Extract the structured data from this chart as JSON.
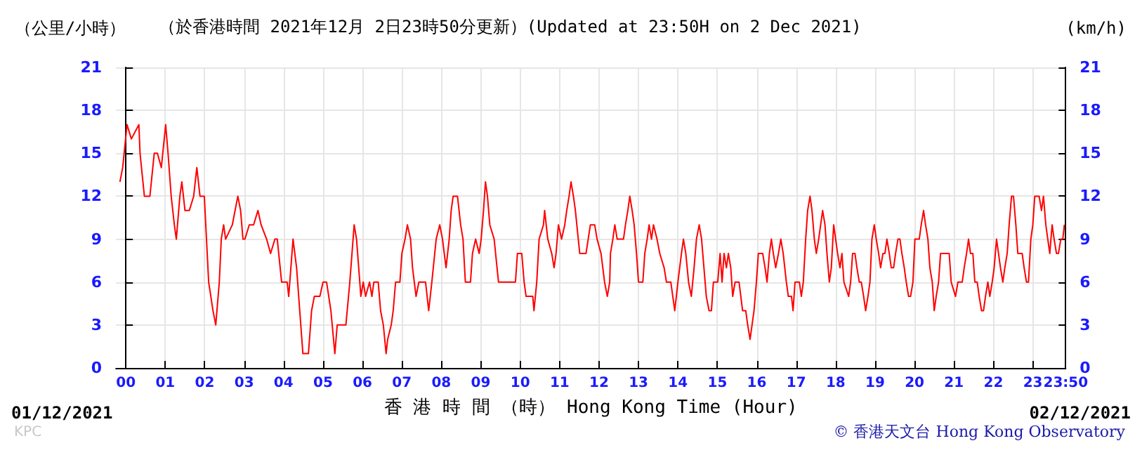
{
  "chart_data": {
    "type": "line",
    "title": "（於香港時間 2021年12月 2日23時50分更新）(Updated at 23:50H on 2 Dec 2021)",
    "ylabel": "（公里/小時）",
    "y2label": "(km/h)",
    "xlabel": "香 港 時 間 （時） Hong Kong Time (Hour)",
    "annotations": [
      "01/12/2021",
      "02/12/2021",
      "© 香港天文台 Hong Kong Observatory",
      "KPC"
    ],
    "xlim": [
      -0.25,
      23.833
    ],
    "xticks": [
      {
        "value": 0,
        "label": "00"
      },
      {
        "value": 1,
        "label": "01"
      },
      {
        "value": 2,
        "label": "02"
      },
      {
        "value": 3,
        "label": "03"
      },
      {
        "value": 4,
        "label": "04"
      },
      {
        "value": 5,
        "label": "05"
      },
      {
        "value": 6,
        "label": "06"
      },
      {
        "value": 7,
        "label": "07"
      },
      {
        "value": 8,
        "label": "08"
      },
      {
        "value": 9,
        "label": "09"
      },
      10,
      11,
      12,
      13,
      14,
      15,
      16,
      17,
      18,
      19,
      20,
      21,
      22,
      23,
      {
        "value": 23.833,
        "label": "23:50"
      }
    ],
    "ylim": [
      0,
      21
    ],
    "yticks": [
      0,
      3,
      6,
      9,
      12,
      15,
      18,
      21
    ],
    "y2lim": [
      0,
      21
    ],
    "y2ticks": [
      0,
      3,
      6,
      9,
      12,
      15,
      18,
      21
    ],
    "grid": true,
    "marker": "none",
    "line_style": "solid",
    "x": [
      -0.15,
      -0.08,
      0.03,
      0.14,
      0.33,
      0.36,
      0.47,
      0.61,
      0.72,
      0.8,
      0.9,
      1.01,
      1.07,
      1.15,
      1.23,
      1.28,
      1.37,
      1.42,
      1.5,
      1.61,
      1.72,
      1.8,
      1.88,
      1.99,
      2.1,
      2.21,
      2.28,
      2.37,
      2.42,
      2.48,
      2.53,
      2.7,
      2.84,
      2.91,
      2.97,
      3.02,
      3.13,
      3.24,
      3.35,
      3.43,
      3.57,
      3.67,
      3.78,
      3.84,
      3.95,
      4.09,
      4.13,
      4.24,
      4.33,
      4.41,
      4.49,
      4.63,
      4.71,
      4.78,
      4.92,
      5.0,
      5.09,
      5.2,
      5.3,
      5.36,
      5.58,
      5.68,
      5.79,
      5.85,
      5.96,
      6.02,
      6.08,
      6.18,
      6.24,
      6.29,
      6.4,
      6.46,
      6.53,
      6.6,
      6.64,
      6.73,
      6.78,
      6.84,
      6.95,
      7.0,
      7.08,
      7.14,
      7.22,
      7.27,
      7.36,
      7.43,
      7.6,
      7.68,
      7.76,
      7.87,
      7.96,
      8.03,
      8.12,
      8.2,
      8.25,
      8.3,
      8.41,
      8.49,
      8.55,
      8.61,
      8.74,
      8.79,
      8.87,
      8.96,
      9.01,
      9.07,
      9.12,
      9.17,
      9.23,
      9.34,
      9.45,
      9.88,
      9.93,
      10.04,
      10.1,
      10.15,
      10.32,
      10.35,
      10.42,
      10.48,
      10.59,
      10.62,
      10.7,
      10.8,
      10.86,
      10.91,
      10.97,
      11.05,
      11.13,
      11.18,
      11.24,
      11.29,
      11.35,
      11.4,
      11.51,
      11.67,
      11.78,
      11.89,
      11.95,
      12.05,
      12.14,
      12.21,
      12.27,
      12.29,
      12.35,
      12.4,
      12.46,
      12.62,
      12.67,
      12.73,
      12.78,
      12.84,
      12.89,
      12.95,
      13.0,
      13.11,
      13.16,
      13.22,
      13.27,
      13.33,
      13.38,
      13.47,
      13.54,
      13.65,
      13.71,
      13.82,
      13.87,
      13.92,
      14.0,
      14.09,
      14.14,
      14.2,
      14.27,
      14.34,
      14.41,
      14.47,
      14.54,
      14.6,
      14.66,
      14.72,
      14.79,
      14.85,
      14.9,
      15.01,
      15.07,
      15.12,
      15.17,
      15.23,
      15.28,
      15.34,
      15.39,
      15.45,
      15.55,
      15.64,
      15.72,
      15.77,
      15.83,
      15.88,
      15.93,
      15.99,
      16.04,
      16.15,
      16.21,
      16.26,
      16.32,
      16.37,
      16.42,
      16.48,
      16.55,
      16.61,
      16.67,
      16.75,
      16.8,
      16.88,
      16.92,
      16.97,
      17.08,
      17.13,
      17.18,
      17.24,
      17.29,
      17.35,
      17.4,
      17.46,
      17.51,
      17.57,
      17.62,
      17.67,
      17.73,
      17.78,
      17.84,
      17.89,
      17.95,
      18.0,
      18.05,
      18.11,
      18.16,
      18.21,
      18.33,
      18.38,
      18.43,
      18.49,
      18.54,
      18.6,
      18.65,
      18.71,
      18.76,
      18.82,
      18.87,
      18.92,
      18.98,
      19.03,
      19.09,
      19.14,
      19.2,
      19.25,
      19.3,
      19.36,
      19.41,
      19.47,
      19.52,
      19.58,
      19.63,
      19.68,
      19.74,
      19.79,
      19.85,
      19.9,
      19.96,
      20.01,
      20.12,
      20.17,
      20.23,
      20.28,
      20.34,
      20.39,
      20.45,
      20.5,
      20.55,
      20.61,
      20.66,
      20.88,
      20.93,
      21.04,
      21.1,
      21.21,
      21.26,
      21.32,
      21.37,
      21.42,
      21.48,
      21.53,
      21.59,
      21.64,
      21.7,
      21.75,
      21.8,
      21.86,
      21.91,
      21.97,
      22.02,
      22.08,
      22.13,
      22.18,
      22.24,
      22.29,
      22.35,
      22.4,
      22.46,
      22.51,
      22.57,
      22.62,
      22.73,
      22.78,
      22.84,
      22.89,
      22.95,
      23.0,
      23.05,
      23.16,
      23.22,
      23.27,
      23.33,
      23.38,
      23.43,
      23.49,
      23.54,
      23.6,
      23.65,
      23.71,
      23.76,
      23.8
    ],
    "series": [
      {
        "color": "#ff0000",
        "values": [
          13,
          14,
          17,
          16,
          17,
          15,
          12,
          12,
          15,
          15,
          14,
          17,
          15,
          12,
          10,
          9,
          12,
          13,
          11,
          11,
          12,
          14,
          12,
          12,
          6,
          4,
          3,
          6,
          9,
          10,
          9,
          10,
          12,
          11,
          9,
          9,
          10,
          10,
          11,
          10,
          9,
          8,
          9,
          9,
          6,
          6,
          5,
          9,
          7,
          4,
          1,
          1,
          4,
          5,
          5,
          6,
          6,
          4,
          1,
          3,
          3,
          6,
          10,
          9,
          5,
          6,
          5,
          6,
          5,
          6,
          6,
          4,
          3,
          1,
          2,
          3,
          4,
          6,
          6,
          8,
          9,
          10,
          9,
          7,
          5,
          6,
          6,
          4,
          6,
          9,
          10,
          9,
          7,
          9,
          11,
          12,
          12,
          10,
          9,
          6,
          6,
          8,
          9,
          8,
          9,
          11,
          13,
          12,
          10,
          9,
          6,
          6,
          8,
          8,
          6,
          5,
          5,
          4,
          6,
          9,
          10,
          11,
          9,
          8,
          7,
          8,
          10,
          9,
          10,
          11,
          12,
          13,
          12,
          11,
          8,
          8,
          10,
          10,
          9,
          8,
          6,
          5,
          6,
          8,
          9,
          10,
          9,
          9,
          10,
          11,
          12,
          11,
          10,
          8,
          6,
          6,
          8,
          9,
          10,
          9,
          10,
          9,
          8,
          7,
          6,
          6,
          5,
          4,
          6,
          8,
          9,
          8,
          6,
          5,
          7,
          9,
          10,
          9,
          7,
          5,
          4,
          4,
          6,
          6,
          8,
          6,
          8,
          7,
          8,
          7,
          5,
          6,
          6,
          4,
          4,
          3,
          2,
          3,
          4,
          6,
          8,
          8,
          7,
          6,
          8,
          9,
          8,
          7,
          8,
          9,
          8,
          6,
          5,
          5,
          4,
          6,
          6,
          5,
          6,
          9,
          11,
          12,
          11,
          9,
          8,
          9,
          10,
          11,
          10,
          8,
          6,
          7,
          10,
          9,
          8,
          7,
          8,
          6,
          5,
          6,
          8,
          8,
          7,
          6,
          6,
          5,
          4,
          5,
          6,
          9,
          10,
          9,
          8,
          7,
          8,
          8,
          9,
          8,
          7,
          7,
          8,
          9,
          9,
          8,
          7,
          6,
          5,
          5,
          6,
          9,
          9,
          10,
          11,
          10,
          9,
          7,
          6,
          4,
          5,
          6,
          8,
          8,
          6,
          5,
          6,
          6,
          7,
          8,
          9,
          8,
          8,
          6,
          6,
          5,
          4,
          4,
          5,
          6,
          5,
          6,
          7,
          9,
          8,
          7,
          6,
          7,
          8,
          10,
          12,
          12,
          10,
          8,
          8,
          7,
          6,
          6,
          9,
          10,
          12,
          12,
          11,
          12,
          10,
          9,
          8,
          10,
          9,
          8,
          8,
          9,
          9,
          10
        ]
      }
    ]
  }
}
